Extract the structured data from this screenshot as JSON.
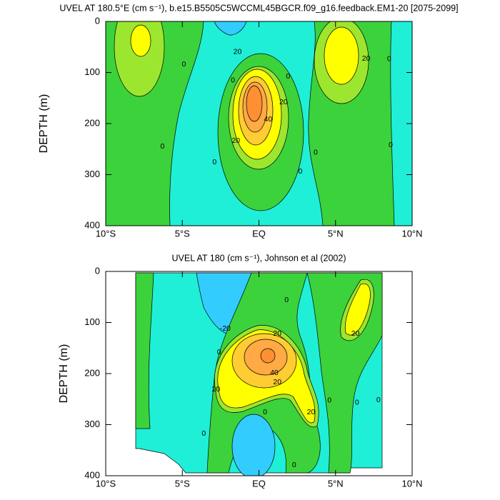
{
  "chart_data": [
    {
      "type": "contour",
      "title": "UVEL AT 180.5°E (cm s⁻¹), b.e15.B5505C5WCCML45BGCR.f09_g16.feedback.EM1-20 [2075-2099]",
      "ylabel": "DEPTH (m)",
      "xlim": [
        -10,
        10
      ],
      "xticks": [
        {
          "value": -10,
          "label": "10°S"
        },
        {
          "value": -5,
          "label": "5°S"
        },
        {
          "value": 0,
          "label": "EQ"
        },
        {
          "value": 5,
          "label": "5°N"
        },
        {
          "value": 10,
          "label": "10°N"
        }
      ],
      "ylim": [
        0,
        400
      ],
      "y_inverted": true,
      "yticks": [
        0,
        100,
        200,
        300,
        400
      ],
      "contour_labels": [
        {
          "label": "0",
          "x": -4.9,
          "y": 84
        },
        {
          "label": "20",
          "x": -1.4,
          "y": 60
        },
        {
          "label": "0",
          "x": -1.7,
          "y": 116
        },
        {
          "label": "0",
          "x": 1.9,
          "y": 108
        },
        {
          "label": "20",
          "x": 1.6,
          "y": 158
        },
        {
          "label": "40",
          "x": 0.6,
          "y": 192
        },
        {
          "label": "20",
          "x": -1.5,
          "y": 234
        },
        {
          "label": "20",
          "x": 7.0,
          "y": 73
        },
        {
          "label": "0",
          "x": 8.5,
          "y": 74
        },
        {
          "label": "0",
          "x": -6.3,
          "y": 245
        },
        {
          "label": "0",
          "x": -2.9,
          "y": 276
        },
        {
          "label": "0",
          "x": 3.7,
          "y": 257
        },
        {
          "label": "0",
          "x": 2.7,
          "y": 294
        },
        {
          "label": "0",
          "x": 8.6,
          "y": 242
        }
      ]
    },
    {
      "type": "contour",
      "title": "UVEL AT 180 (cm s⁻¹), Johnson et al (2002)",
      "ylabel": "DEPTH (m)",
      "xlim": [
        -10,
        10
      ],
      "xticks": [
        {
          "value": -10,
          "label": "10°S"
        },
        {
          "value": -5,
          "label": "5°S"
        },
        {
          "value": 0,
          "label": "EQ"
        },
        {
          "value": 5,
          "label": "5°N"
        },
        {
          "value": 10,
          "label": "10°N"
        }
      ],
      "ylim": [
        0,
        400
      ],
      "y_inverted": true,
      "yticks": [
        0,
        100,
        200,
        300,
        400
      ],
      "contour_labels": [
        {
          "label": "-20",
          "x": -2.2,
          "y": 112
        },
        {
          "label": "0",
          "x": 1.8,
          "y": 56
        },
        {
          "label": "20",
          "x": 1.2,
          "y": 122
        },
        {
          "label": "0",
          "x": -2.6,
          "y": 158
        },
        {
          "label": "40",
          "x": 1.0,
          "y": 199
        },
        {
          "label": "20",
          "x": 1.2,
          "y": 217
        },
        {
          "label": "20",
          "x": -2.8,
          "y": 231
        },
        {
          "label": "20",
          "x": 3.4,
          "y": 276
        },
        {
          "label": "20",
          "x": 6.3,
          "y": 122
        },
        {
          "label": "0",
          "x": 4.6,
          "y": 253
        },
        {
          "label": "0",
          "x": 6.4,
          "y": 257
        },
        {
          "label": "0",
          "x": 7.8,
          "y": 252
        },
        {
          "label": "0",
          "x": 0.4,
          "y": 276
        },
        {
          "label": "0",
          "x": -3.6,
          "y": 318
        },
        {
          "label": "0",
          "x": 2.3,
          "y": 379
        }
      ]
    }
  ]
}
